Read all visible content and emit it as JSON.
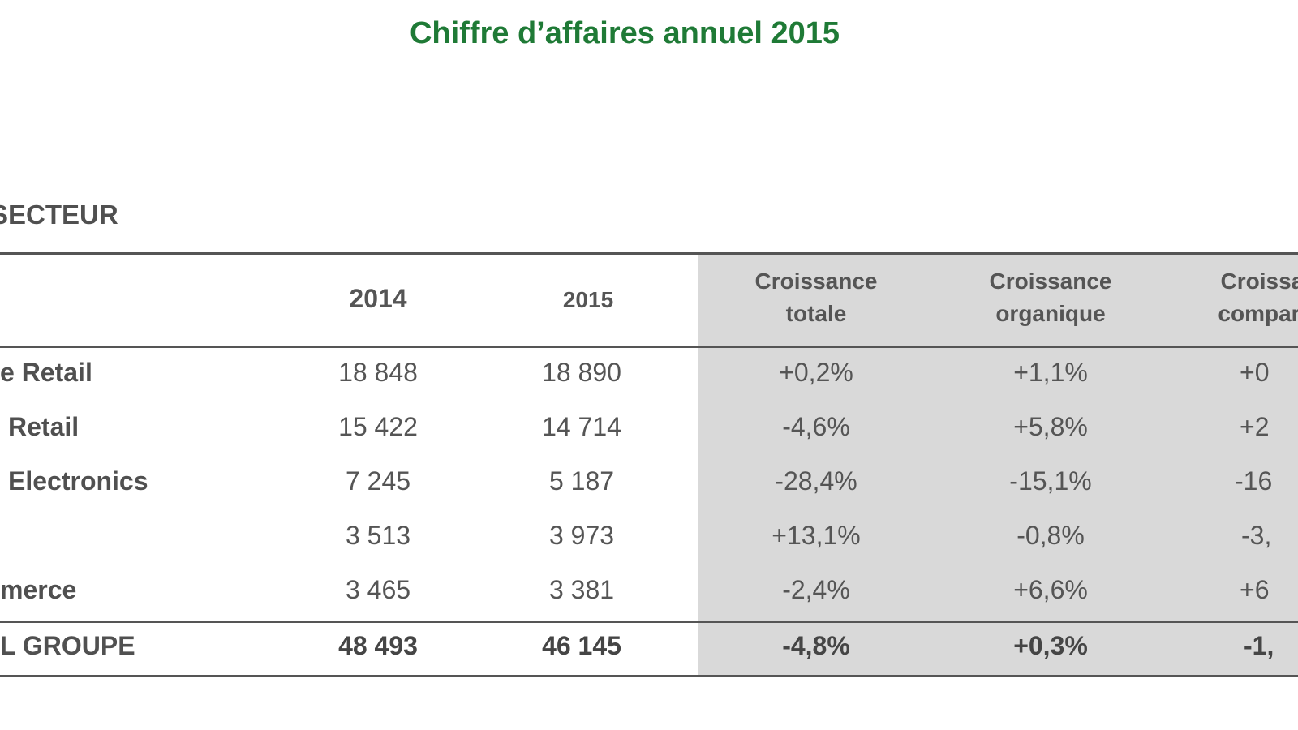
{
  "title": "Chiffre d’affaires annuel 2015",
  "section_label": "SECTEUR",
  "table": {
    "headers": {
      "y2014": "2014",
      "y2015": "2015",
      "growth_total": "Croissance\ntotale",
      "growth_organic": "Croissance\norganique",
      "growth_comparable": "Croissance\ncomparable"
    },
    "rows": [
      {
        "label": "e Retail",
        "y2014": "18 848",
        "y2015": "18 890",
        "total": "+0,2%",
        "organic": "+1,1%",
        "comparable": "+0"
      },
      {
        "label": "Retail",
        "y2014": "15 422",
        "y2015": "14 714",
        "total": "-4,6%",
        "organic": "+5,8%",
        "comparable": "+2"
      },
      {
        "label": "Electronics",
        "y2014": "7 245",
        "y2015": "5 187",
        "total": "-28,4%",
        "organic": "-15,1%",
        "comparable": "-16"
      },
      {
        "label": "",
        "y2014": "3 513",
        "y2015": "3 973",
        "total": "+13,1%",
        "organic": "-0,8%",
        "comparable": "-3,"
      },
      {
        "label": "merce",
        "y2014": "3 465",
        "y2015": "3 381",
        "total": "-2,4%",
        "organic": "+6,6%",
        "comparable": "+6"
      }
    ],
    "total_row": {
      "label": "L GROUPE",
      "y2014": "48 493",
      "y2015": "46 145",
      "total": "-4,8%",
      "organic": "+0,3%",
      "comparable": "-1,"
    }
  }
}
